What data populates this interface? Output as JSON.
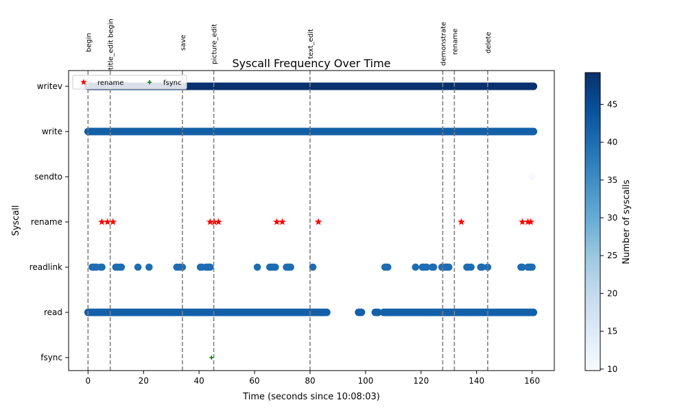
{
  "chart_data": {
    "type": "scatter",
    "title": "Syscall Frequency Over Time",
    "xlabel": "Time (seconds since 10:08:03)",
    "ylabel": "Syscall",
    "xlim": [
      -7,
      168
    ],
    "x_ticks": [
      0,
      20,
      40,
      60,
      80,
      100,
      120,
      140,
      160
    ],
    "categories": [
      "fsync",
      "read",
      "readlink",
      "rename",
      "sendto",
      "write",
      "writev"
    ],
    "grid": false,
    "legend_placement": "top-left",
    "colorbar": {
      "label": "Number of syscalls",
      "min": 9.8,
      "max": 49.2,
      "ticks": [
        10,
        15,
        20,
        25,
        30,
        35,
        40,
        45
      ],
      "colormap": "Blues"
    },
    "events": [
      {
        "label": "begin",
        "x": 0
      },
      {
        "label": "title_edit begin",
        "x": 8
      },
      {
        "label": "save",
        "x": 34
      },
      {
        "label": "picture_edit",
        "x": 45.3
      },
      {
        "label": "text_edit",
        "x": 80
      },
      {
        "label": "demonstrate",
        "x": 127.8
      },
      {
        "label": "rename",
        "x": 132
      },
      {
        "label": "delete",
        "x": 144
      }
    ],
    "series": [
      {
        "name": "writev",
        "category": "writev",
        "count": 49,
        "segments": [
          [
            0,
            160.5
          ]
        ]
      },
      {
        "name": "write",
        "category": "write",
        "count": 42,
        "segments": [
          [
            0,
            160.5
          ]
        ]
      },
      {
        "name": "sendto",
        "category": "sendto",
        "count": 10,
        "points": [
          160
        ]
      },
      {
        "name": "readlink",
        "category": "readlink",
        "count": 40,
        "points": [
          1.5,
          2,
          2.5,
          3,
          4.5,
          5,
          10,
          10.5,
          11.5,
          12,
          18,
          22,
          32,
          33,
          34,
          40.5,
          41,
          42.5,
          43,
          43.5,
          44,
          61,
          65.5,
          66,
          66.5,
          67,
          67.5,
          71.5,
          72,
          72.5,
          73,
          81,
          107,
          107.5,
          108,
          118,
          120.5,
          121,
          122,
          124,
          124.5,
          127.5,
          128,
          128.5,
          129,
          129.5,
          130,
          136.5,
          137,
          138,
          141.5,
          142,
          144,
          156,
          156.5,
          158.5,
          159,
          159.5,
          160
        ]
      },
      {
        "name": "read",
        "category": "read",
        "count": 42,
        "segments": [
          [
            0,
            86
          ],
          [
            97.5,
            98.5
          ],
          [
            103.5,
            104.5
          ],
          [
            106.5,
            160.5
          ]
        ]
      },
      {
        "name": "rename",
        "category": "rename",
        "marker": "star",
        "color": "#ff0000",
        "legend": "rename",
        "points": [
          5,
          7,
          9,
          44,
          45.5,
          47,
          68,
          70,
          83,
          134.5,
          156.5,
          158.5,
          159.5
        ]
      },
      {
        "name": "fsync",
        "category": "fsync",
        "marker": "plus",
        "color": "#008000",
        "legend": "fsync",
        "points": [
          44.5
        ]
      }
    ]
  }
}
